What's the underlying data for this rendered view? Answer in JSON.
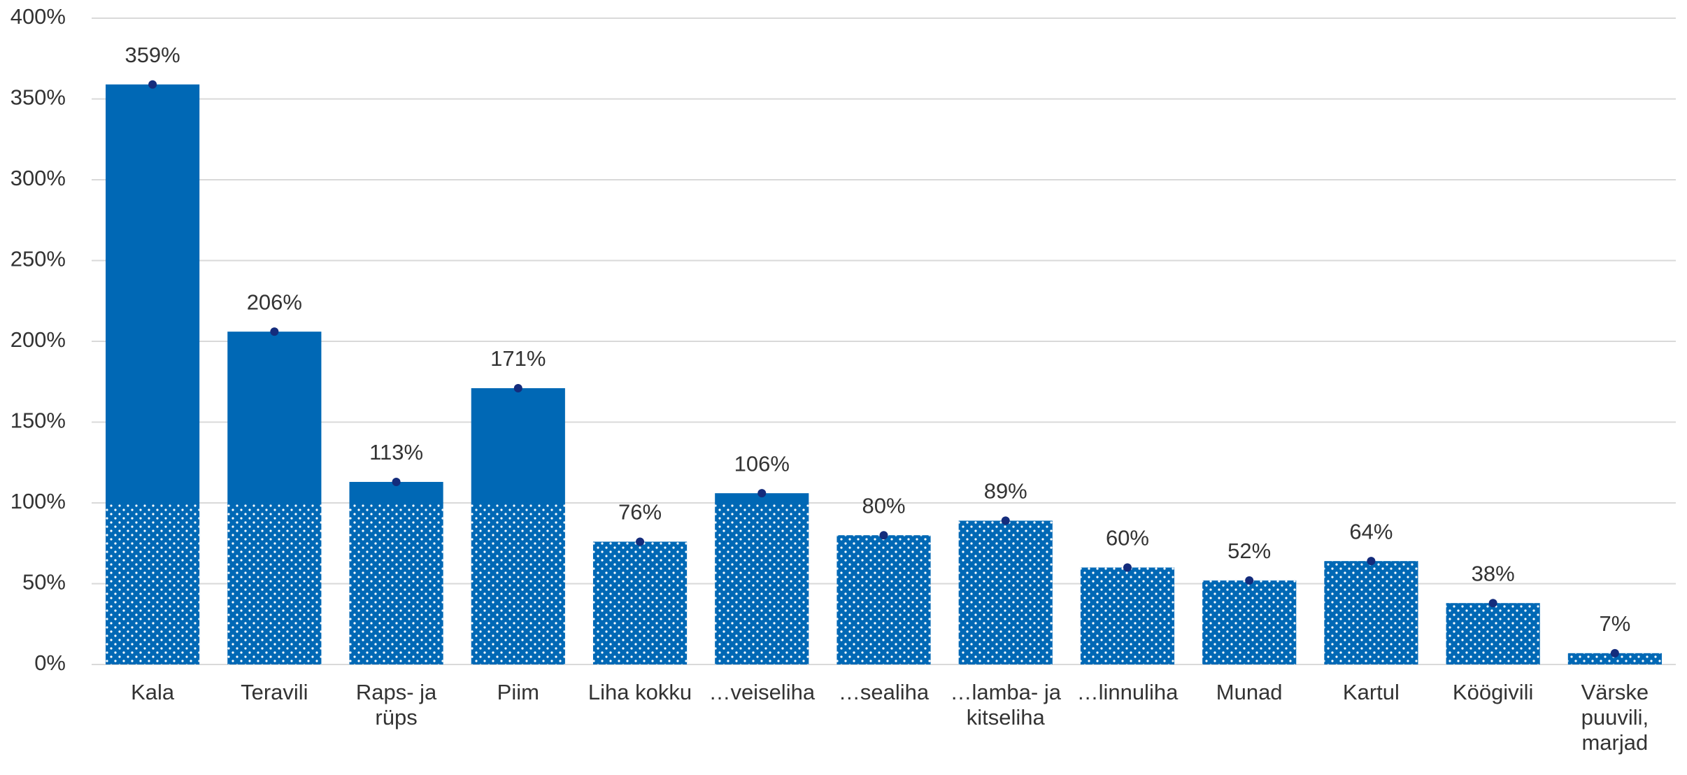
{
  "chart_data": {
    "type": "bar",
    "categories": [
      "Kala",
      "Teravili",
      "Raps- ja rüps",
      "Piim",
      "Liha kokku",
      "…veiseliha",
      "…sealiha",
      "…lamba- ja kitseliha",
      "…linnuliha",
      "Munad",
      "Kartul",
      "Köögivili",
      "Värske puuvili, marjad"
    ],
    "values": [
      359,
      206,
      113,
      171,
      76,
      106,
      80,
      89,
      60,
      52,
      64,
      38,
      7
    ],
    "value_labels": [
      "359%",
      "206%",
      "113%",
      "171%",
      "76%",
      "106%",
      "80%",
      "89%",
      "60%",
      "52%",
      "64%",
      "38%",
      "7%"
    ],
    "color": "#0068b5",
    "marker_color": "#142c7c",
    "pattern_threshold": 100,
    "ylim": [
      0,
      400
    ],
    "yticks": [
      {
        "value": 0,
        "label": "0%"
      },
      {
        "value": 50,
        "label": "50%"
      },
      {
        "value": 100,
        "label": "100%"
      },
      {
        "value": 150,
        "label": "150%"
      },
      {
        "value": 200,
        "label": "200%"
      },
      {
        "value": 250,
        "label": "250%"
      },
      {
        "value": 300,
        "label": "300%"
      },
      {
        "value": 350,
        "label": "350%"
      },
      {
        "value": 400,
        "label": "400%"
      }
    ],
    "grid": true
  }
}
